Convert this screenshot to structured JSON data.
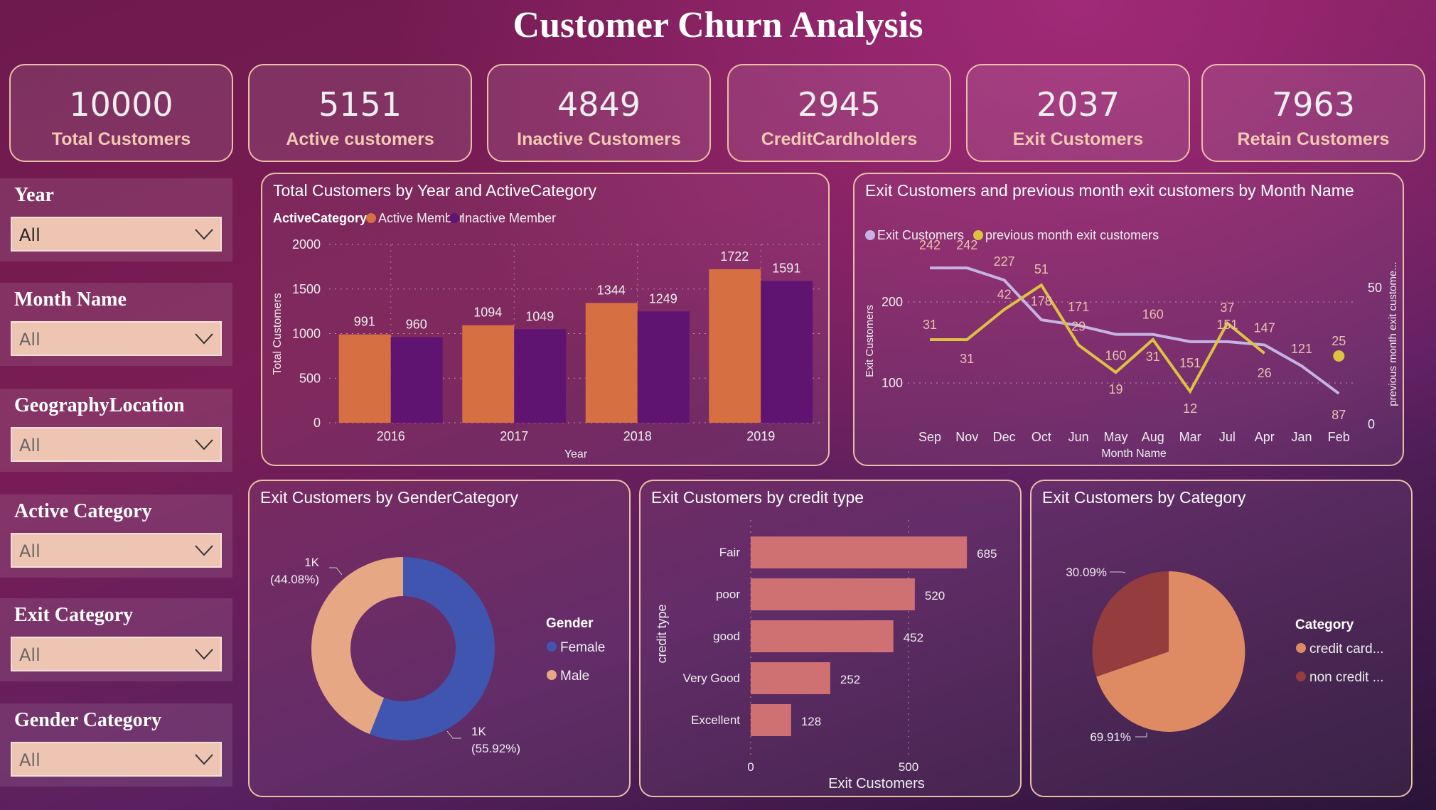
{
  "title": "Customer Churn Analysis",
  "kpis": [
    {
      "value": "10000",
      "label": "Total Customers"
    },
    {
      "value": "5151",
      "label": "Active customers"
    },
    {
      "value": "4849",
      "label": "Inactive Customers"
    },
    {
      "value": "2945",
      "label": "CreditCardholders"
    },
    {
      "value": "2037",
      "label": "Exit Customers"
    },
    {
      "value": "7963",
      "label": "Retain Customers"
    }
  ],
  "slicers": [
    {
      "title": "Year",
      "value": "All"
    },
    {
      "title": "Month Name",
      "value": "All"
    },
    {
      "title": "GeographyLocation",
      "value": "All"
    },
    {
      "title": "Active Category",
      "value": "All"
    },
    {
      "title": "Exit Category",
      "value": "All"
    },
    {
      "title": "Gender Category",
      "value": "All"
    }
  ],
  "colors": {
    "active": "#d66f42",
    "inactive": "#601472",
    "exit": "#c5b4e3",
    "prev": "#dcc240",
    "female": "#3f55b0",
    "male": "#e6a785",
    "credit_bar": "#cf7072",
    "credit_card": "#de8b64",
    "non_credit": "#943c3e"
  },
  "chart_data": [
    {
      "type": "bar",
      "title": "Total Customers by Year and ActiveCategory",
      "legend_title": "ActiveCategory",
      "xlabel": "Year",
      "ylabel": "Total Customers",
      "ylim": [
        0,
        2000
      ],
      "yticks": [
        0,
        500,
        1000,
        1500,
        2000
      ],
      "grid": true,
      "legend": "top-left",
      "categories": [
        "2016",
        "2017",
        "2018",
        "2019"
      ],
      "series": [
        {
          "name": "Active Member",
          "values": [
            991,
            1094,
            1344,
            1722
          ]
        },
        {
          "name": "Inactive Member",
          "values": [
            960,
            1049,
            1249,
            1591
          ]
        }
      ]
    },
    {
      "type": "line",
      "title": "Exit Customers and previous month exit customers by Month Name",
      "xlabel": "Month Name",
      "ylabel": "Exit Customers",
      "y2label": "previous month exit custome...",
      "yticks": [
        100,
        200
      ],
      "y2ticks": [
        0,
        50
      ],
      "legend": "top-left",
      "categories": [
        "Sep",
        "Nov",
        "Dec",
        "Oct",
        "Jun",
        "May",
        "Aug",
        "Mar",
        "Jul",
        "Apr",
        "Jan",
        "Feb"
      ],
      "series": [
        {
          "name": "Exit Customers",
          "values": [
            242,
            242,
            227,
            178,
            171,
            160,
            160,
            151,
            151,
            147,
            121,
            87
          ]
        },
        {
          "name": "previous month exit customers",
          "values": [
            31,
            31,
            42,
            51,
            29,
            19,
            31,
            12,
            37,
            26,
            null,
            25
          ]
        }
      ]
    },
    {
      "type": "pie",
      "donut": true,
      "title": "Exit Customers by GenderCategory",
      "legend_title": "Gender",
      "legend": "right",
      "slices": [
        {
          "name": "Female",
          "value": 55.92,
          "label": "1K",
          "pct": "(55.92%)"
        },
        {
          "name": "Male",
          "value": 44.08,
          "label": "1K",
          "pct": "(44.08%)"
        }
      ]
    },
    {
      "type": "bar",
      "orientation": "horizontal",
      "title": "Exit Customers by credit type",
      "xlabel": "Exit Customers",
      "ylabel": "credit type",
      "xticks": [
        0,
        500
      ],
      "categories": [
        "Fair",
        "poor",
        "good",
        "Very Good",
        "Excellent"
      ],
      "values": [
        685,
        520,
        452,
        252,
        128
      ]
    },
    {
      "type": "pie",
      "title": "Exit Customers by Category",
      "legend_title": "Category",
      "legend": "right",
      "slices": [
        {
          "name": "credit card...",
          "value": 69.91,
          "pct": "69.91%"
        },
        {
          "name": "non credit ...",
          "value": 30.09,
          "pct": "30.09%"
        }
      ]
    }
  ]
}
